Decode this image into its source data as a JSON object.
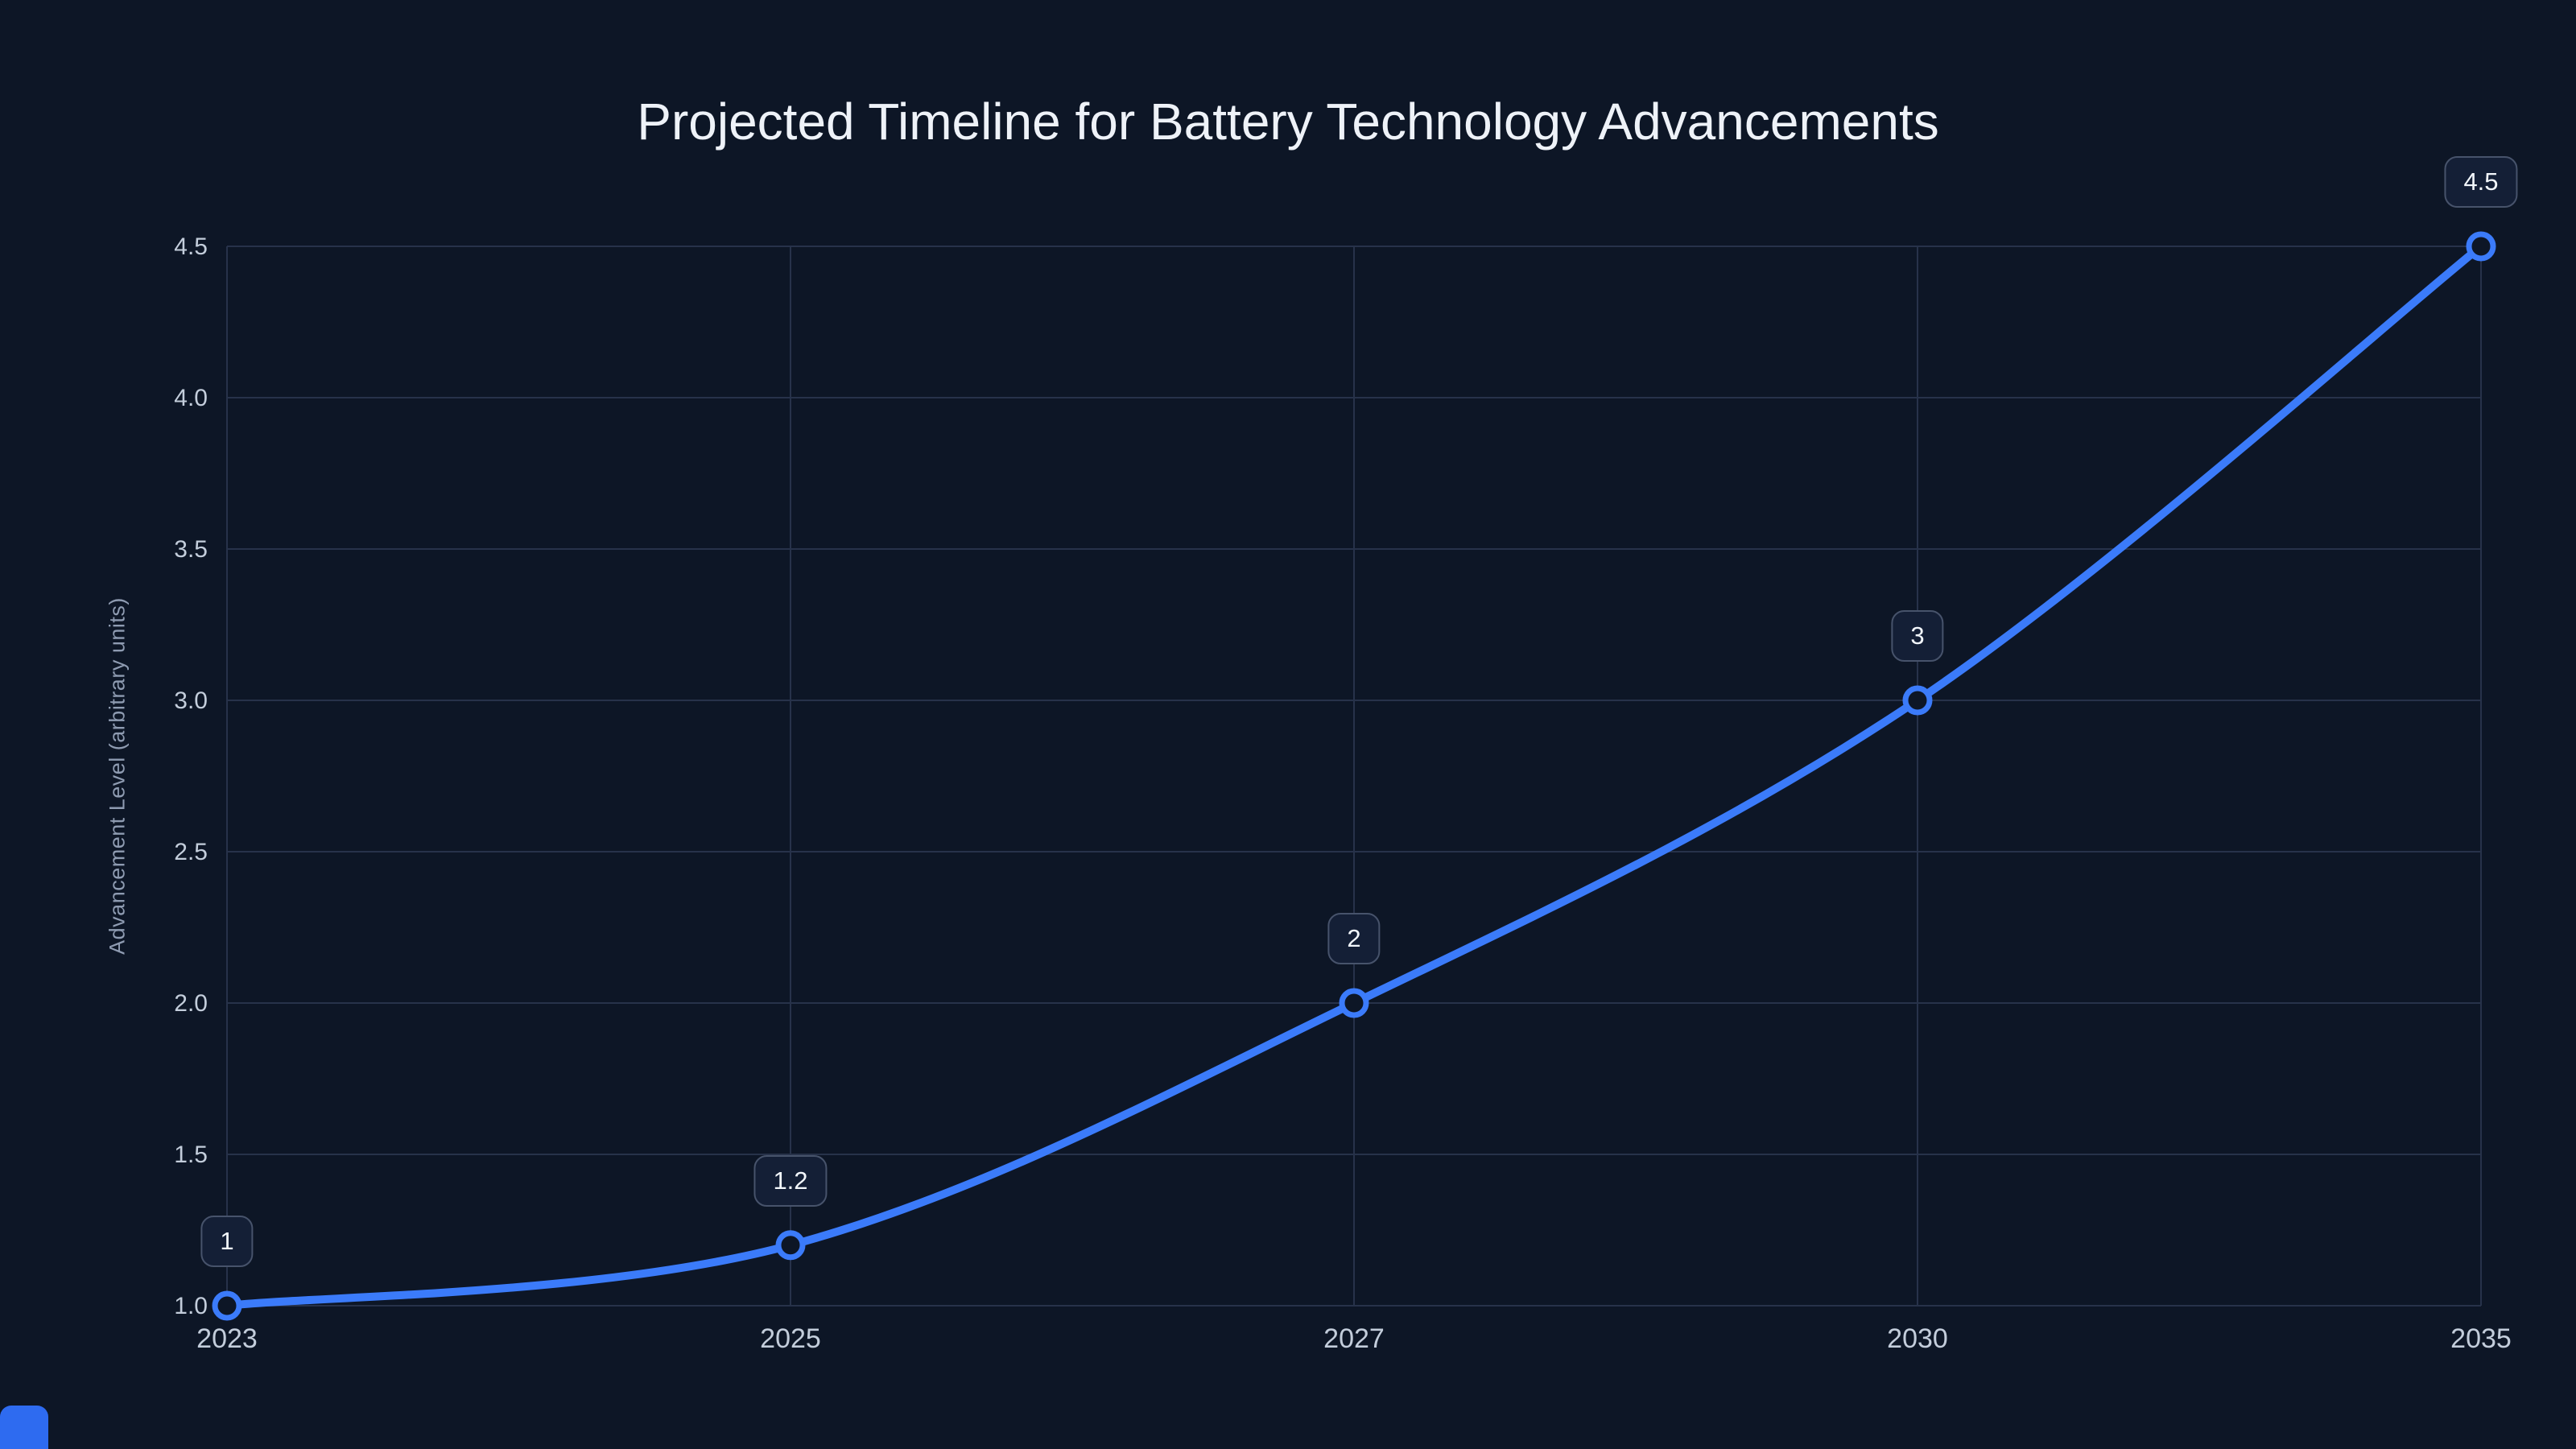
{
  "chart_data": {
    "type": "line",
    "title": "Projected Timeline for Battery Technology Advancements",
    "xlabel": "",
    "ylabel": "Advancement Level (arbitrary units)",
    "categories": [
      "2023",
      "2025",
      "2027",
      "2030",
      "2035"
    ],
    "values": [
      1,
      1.2,
      2,
      3,
      4.5
    ],
    "point_labels": [
      "1",
      "1.2",
      "2",
      "3",
      "4.5"
    ],
    "ylim": [
      1.0,
      4.5
    ],
    "yticks": [
      1.0,
      1.5,
      2.0,
      2.5,
      3.0,
      3.5,
      4.0,
      4.5
    ],
    "ytick_labels": [
      "1.0",
      "1.5",
      "2.0",
      "2.5",
      "3.0",
      "3.5",
      "4.0",
      "4.5"
    ],
    "x_axis_type": "category",
    "line_shape": "spline",
    "marker_style": "open-circle",
    "grid": true,
    "legend": false,
    "colors": {
      "background": "#0d1626",
      "line": "#3b7bfa",
      "grid": "#27324a",
      "tick": "#c3cddb",
      "axis_title": "#8e9bb1",
      "title": "#eef2f8",
      "marker_fill": "#0d1626",
      "badge_bg": "#141f36",
      "badge_border": "#47536b",
      "badge_text": "#f2f6fb",
      "corner_accent": "#2e6bf0"
    }
  }
}
